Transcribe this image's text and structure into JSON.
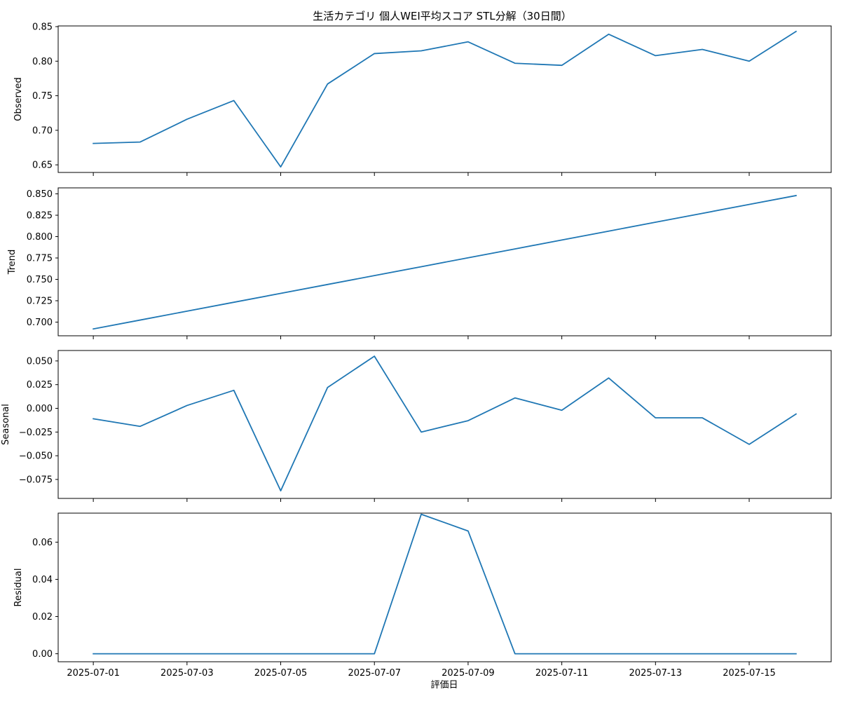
{
  "figure": {
    "title": "生活カテゴリ 個人WEI平均スコア STL分解（30日間）",
    "xlabel": "評価日"
  },
  "chart_data": {
    "type": "line",
    "x": [
      "2025-07-01",
      "2025-07-02",
      "2025-07-03",
      "2025-07-04",
      "2025-07-05",
      "2025-07-06",
      "2025-07-07",
      "2025-07-08",
      "2025-07-09",
      "2025-07-10",
      "2025-07-11",
      "2025-07-12",
      "2025-07-13",
      "2025-07-14",
      "2025-07-15",
      "2025-07-16"
    ],
    "xticks": [
      "2025-07-01",
      "2025-07-03",
      "2025-07-05",
      "2025-07-07",
      "2025-07-09",
      "2025-07-11",
      "2025-07-13",
      "2025-07-15"
    ],
    "xlim": [
      "2025-06-30T06:00",
      "2025-07-16T18:00"
    ],
    "line_color": "#1f77b4",
    "panels": [
      {
        "ylabel": "Observed",
        "ylim": [
          0.639,
          0.851
        ],
        "yticks": [
          "0.65",
          "0.70",
          "0.75",
          "0.80",
          "0.85"
        ],
        "values": [
          0.681,
          0.683,
          0.716,
          0.743,
          0.647,
          0.767,
          0.811,
          0.815,
          0.828,
          0.797,
          0.794,
          0.839,
          0.808,
          0.817,
          0.8,
          0.843
        ]
      },
      {
        "ylabel": "Trend",
        "ylim": [
          0.684,
          0.857
        ],
        "yticks": [
          "0.700",
          "0.725",
          "0.750",
          "0.775",
          "0.800",
          "0.825",
          "0.850"
        ],
        "values": [
          0.692,
          0.7024,
          0.7128,
          0.7232,
          0.7336,
          0.744,
          0.7544,
          0.7648,
          0.7752,
          0.7856,
          0.796,
          0.8064,
          0.8168,
          0.8272,
          0.8376,
          0.848
        ]
      },
      {
        "ylabel": "Seasonal",
        "ylim": [
          -0.095,
          0.061
        ],
        "yticks": [
          "0.050",
          "0.025",
          "0.000",
          "−0.025",
          "−0.050",
          "−0.075"
        ],
        "values": [
          -0.011,
          -0.019,
          0.003,
          0.019,
          -0.087,
          0.022,
          0.055,
          -0.025,
          -0.013,
          0.011,
          -0.002,
          0.032,
          -0.01,
          -0.01,
          -0.038,
          -0.006
        ]
      },
      {
        "ylabel": "Residual",
        "ylim": [
          -0.0043,
          0.0756
        ],
        "yticks": [
          "0.00",
          "0.02",
          "0.04",
          "0.06"
        ],
        "values": [
          0,
          0,
          0,
          0,
          0,
          0,
          0,
          0.075,
          0.066,
          0,
          0,
          0,
          0,
          0,
          0,
          0
        ]
      }
    ]
  }
}
